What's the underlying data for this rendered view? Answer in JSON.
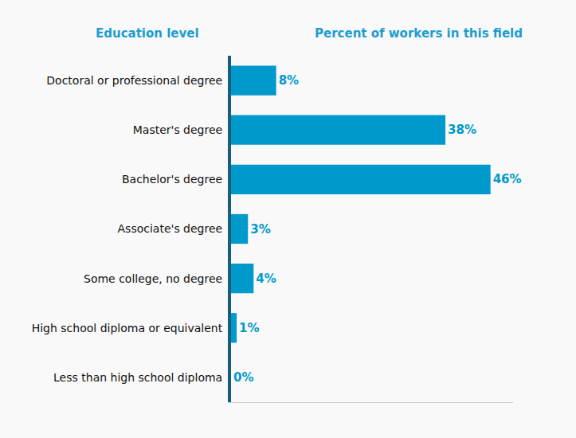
{
  "chart_data": {
    "type": "bar",
    "orientation": "horizontal",
    "ylabel": "Education level",
    "xlabel": "Percent of workers in this field",
    "categories": [
      "Doctoral or professional degree",
      "Master's degree",
      "Bachelor's degree",
      "Associate's degree",
      "Some college, no degree",
      "High school diploma or equivalent",
      "Less than high school diploma"
    ],
    "values": [
      8,
      38,
      46,
      3,
      4,
      1,
      0
    ],
    "value_labels": [
      "8%",
      "38%",
      "46%",
      "3%",
      "4%",
      "1%",
      "0%"
    ],
    "color": "#0099cc",
    "data_labels": true,
    "xlim": [
      0,
      50
    ],
    "xticks": [],
    "grid": false,
    "tick_labels": "y"
  }
}
